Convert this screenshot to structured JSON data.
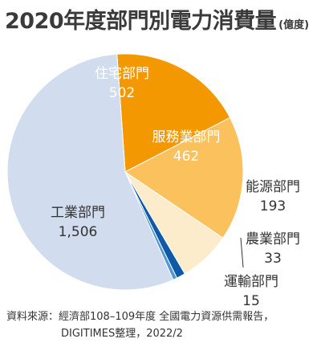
{
  "title": "2020年度部門別電力消費量",
  "unit": "(億度)",
  "source_line1": "資料來源：經濟部108–109年度 全國電力資源供需報告，",
  "source_line2": "DIGITIMES整理，2022/2",
  "chart_data": {
    "type": "pie",
    "title": "2020年度部門別電力消費量",
    "unit": "億度",
    "slices": [
      {
        "label": "住宅部門",
        "value": 502,
        "display": "502",
        "color": "#f39800"
      },
      {
        "label": "服務業部門",
        "value": 462,
        "display": "462",
        "color": "#fbc15c"
      },
      {
        "label": "能源部門",
        "value": 193,
        "display": "193",
        "color": "#fdeccb"
      },
      {
        "label": "農業部門",
        "value": 33,
        "display": "33",
        "color": "#0e5aa7"
      },
      {
        "label": "運輸部門",
        "value": 15,
        "display": "15",
        "color": "#4f97d6"
      },
      {
        "label": "工業部門",
        "value": 1506,
        "display": "1,506",
        "color": "#d2dcef"
      }
    ]
  }
}
